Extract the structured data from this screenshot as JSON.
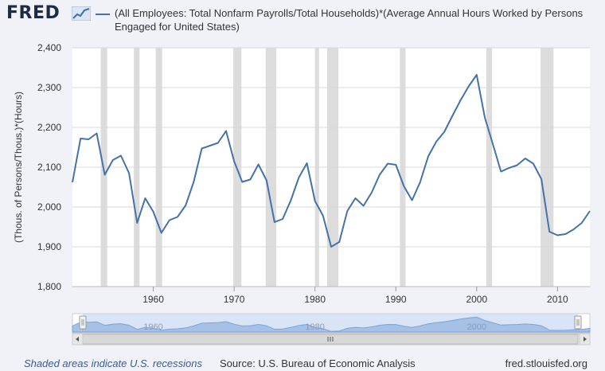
{
  "header": {
    "logo_text": "FRED",
    "logo_icon": "line-chart-icon",
    "legend_label": "(All Employees: Total Nonfarm Payrolls/Total Households)*(Average Annual Hours Worked by Persons Engaged for United States)"
  },
  "colors": {
    "series": "#4572a7",
    "recession": "#dcdcdc",
    "plot_background": "#ffffff",
    "page_background": "#f0f2f8",
    "navigator_fill": "#a6c1e6"
  },
  "footer": {
    "recession_note": "Shaded areas indicate U.S. recessions",
    "source": "Source: U.S. Bureau of Economic Analysis",
    "url": "fred.stlouisfed.org"
  },
  "navigator": {
    "year_labels": [
      "1960",
      "1980",
      "2000"
    ],
    "left_arrow_icon": "chevron-left-icon",
    "right_arrow_icon": "chevron-right-icon",
    "grip_icon": "scrollbar-grip-icon"
  },
  "chart_data": {
    "type": "line",
    "xlabel": "",
    "ylabel": "(Thous. of Persons/Thous.)*(Hours)",
    "xlim": [
      1950,
      2014
    ],
    "ylim": [
      1800,
      2400
    ],
    "x_ticks": [
      1960,
      1970,
      1980,
      1990,
      2000,
      2010
    ],
    "y_ticks": [
      1800,
      1900,
      2000,
      2100,
      2200,
      2300,
      2400
    ],
    "y_tick_labels": [
      "1,800",
      "1,900",
      "2,000",
      "2,100",
      "2,200",
      "2,300",
      "2,400"
    ],
    "grid": "horizontal",
    "recessions": [
      [
        1953.5,
        1954.3
      ],
      [
        1957.6,
        1958.3
      ],
      [
        1960.3,
        1961.1
      ],
      [
        1969.9,
        1970.9
      ],
      [
        1973.9,
        1975.2
      ],
      [
        1980.0,
        1980.5
      ],
      [
        1981.5,
        1982.9
      ],
      [
        1990.5,
        1991.2
      ],
      [
        2001.2,
        2001.9
      ],
      [
        2007.9,
        2009.5
      ]
    ],
    "series": [
      {
        "x": [
          1950,
          1951,
          1952,
          1953,
          1954,
          1955,
          1956,
          1957,
          1958,
          1959,
          1960,
          1961,
          1962,
          1963,
          1964,
          1965,
          1966,
          1967,
          1968,
          1969,
          1970,
          1971,
          1972,
          1973,
          1974,
          1975,
          1976,
          1977,
          1978,
          1979,
          1980,
          1981,
          1982,
          1983,
          1984,
          1985,
          1986,
          1987,
          1988,
          1989,
          1990,
          1991,
          1992,
          1993,
          1994,
          1995,
          1996,
          1997,
          1998,
          1999,
          2000,
          2001,
          2002,
          2003,
          2004,
          2005,
          2006,
          2007,
          2008,
          2009,
          2010,
          2011,
          2012,
          2013,
          2014
        ],
        "values": [
          2062,
          2172,
          2170,
          2185,
          2081,
          2118,
          2129,
          2085,
          1960,
          2022,
          1988,
          1935,
          1967,
          1975,
          2004,
          2063,
          2147,
          2154,
          2161,
          2191,
          2115,
          2063,
          2069,
          2107,
          2067,
          1962,
          1970,
          2016,
          2074,
          2110,
          2015,
          1978,
          1900,
          1912,
          1990,
          2022,
          2003,
          2036,
          2081,
          2109,
          2106,
          2052,
          2017,
          2062,
          2127,
          2164,
          2189,
          2229,
          2268,
          2303,
          2332,
          2225,
          2158,
          2089,
          2098,
          2105,
          2122,
          2109,
          2070,
          1938,
          1929,
          1932,
          1944,
          1960,
          1990
        ]
      }
    ]
  }
}
